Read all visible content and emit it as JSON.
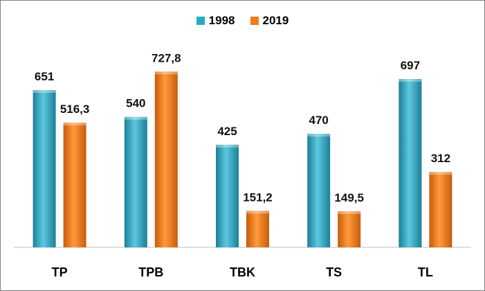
{
  "chart_data": {
    "type": "bar",
    "categories": [
      "TP",
      "TPB",
      "TBK",
      "TS",
      "TL"
    ],
    "series": [
      {
        "name": "1998",
        "values": [
          651,
          540,
          425,
          470,
          697
        ],
        "labels": [
          "651",
          "540",
          "425",
          "470",
          "697"
        ],
        "color": "#2aa9c6"
      },
      {
        "name": "2019",
        "values": [
          516.3,
          727.8,
          151.2,
          149.5,
          312
        ],
        "labels": [
          "516,3",
          "727,8",
          "151,2",
          "149,5",
          "312"
        ],
        "color": "#f07d1a"
      }
    ],
    "ylim": [
      0,
      800
    ],
    "legend_position": "top",
    "grid": false
  }
}
